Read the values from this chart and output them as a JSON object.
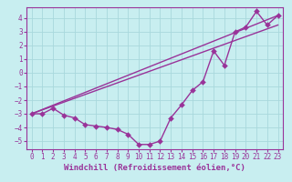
{
  "xlabel": "Windchill (Refroidissement éolien,°C)",
  "bg_color": "#c8eef0",
  "grid_color": "#a8d8dc",
  "line_color": "#993399",
  "xlim": [
    -0.5,
    23.5
  ],
  "ylim": [
    -5.6,
    4.8
  ],
  "xticks": [
    0,
    1,
    2,
    3,
    4,
    5,
    6,
    7,
    8,
    9,
    10,
    11,
    12,
    13,
    14,
    15,
    16,
    17,
    18,
    19,
    20,
    21,
    22,
    23
  ],
  "yticks": [
    -5,
    -4,
    -3,
    -2,
    -1,
    0,
    1,
    2,
    3,
    4
  ],
  "data_x": [
    0,
    1,
    2,
    3,
    4,
    5,
    6,
    7,
    8,
    9,
    10,
    11,
    12,
    13,
    14,
    15,
    16,
    17,
    18,
    19,
    20,
    21,
    22,
    23
  ],
  "data_y": [
    -3.0,
    -3.0,
    -2.6,
    -3.1,
    -3.3,
    -3.8,
    -3.9,
    -4.0,
    -4.15,
    -4.5,
    -5.25,
    -5.25,
    -5.0,
    -3.3,
    -2.35,
    -1.3,
    -0.65,
    1.6,
    0.55,
    3.0,
    3.35,
    4.5,
    3.5,
    4.2
  ],
  "line1_x": [
    0,
    23
  ],
  "line1_y": [
    -3.0,
    4.2
  ],
  "line2_x": [
    0,
    23
  ],
  "line2_y": [
    -3.0,
    3.5
  ],
  "marker_size": 3,
  "linewidth": 1.0,
  "xlabel_fontsize": 6.5,
  "tick_fontsize": 5.5
}
